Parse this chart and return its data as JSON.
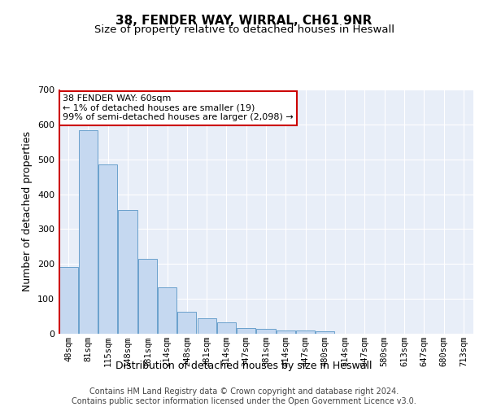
{
  "title": "38, FENDER WAY, WIRRAL, CH61 9NR",
  "subtitle": "Size of property relative to detached houses in Heswall",
  "xlabel": "Distribution of detached houses by size in Heswall",
  "ylabel": "Number of detached properties",
  "categories": [
    "48sqm",
    "81sqm",
    "115sqm",
    "148sqm",
    "181sqm",
    "214sqm",
    "248sqm",
    "281sqm",
    "314sqm",
    "347sqm",
    "381sqm",
    "414sqm",
    "447sqm",
    "480sqm",
    "514sqm",
    "547sqm",
    "580sqm",
    "613sqm",
    "647sqm",
    "680sqm",
    "713sqm"
  ],
  "values": [
    192,
    583,
    485,
    355,
    215,
    132,
    63,
    44,
    32,
    17,
    15,
    10,
    10,
    8,
    0,
    0,
    0,
    0,
    0,
    0,
    0
  ],
  "bar_color": "#c5d8f0",
  "bar_edge_color": "#6aa0cc",
  "vline_color": "#cc0000",
  "annotation_text": "38 FENDER WAY: 60sqm\n← 1% of detached houses are smaller (19)\n99% of semi-detached houses are larger (2,098) →",
  "annotation_box_color": "#ffffff",
  "annotation_box_edge_color": "#cc0000",
  "ylim": [
    0,
    700
  ],
  "yticks": [
    0,
    100,
    200,
    300,
    400,
    500,
    600,
    700
  ],
  "footer_line1": "Contains HM Land Registry data © Crown copyright and database right 2024.",
  "footer_line2": "Contains public sector information licensed under the Open Government Licence v3.0.",
  "fig_bg_color": "#ffffff",
  "plot_bg_color": "#e8eef8",
  "grid_color": "#ffffff",
  "title_fontsize": 11,
  "subtitle_fontsize": 9.5,
  "tick_fontsize": 7.5,
  "ylabel_fontsize": 9,
  "xlabel_fontsize": 9,
  "footer_fontsize": 7,
  "annotation_fontsize": 8
}
